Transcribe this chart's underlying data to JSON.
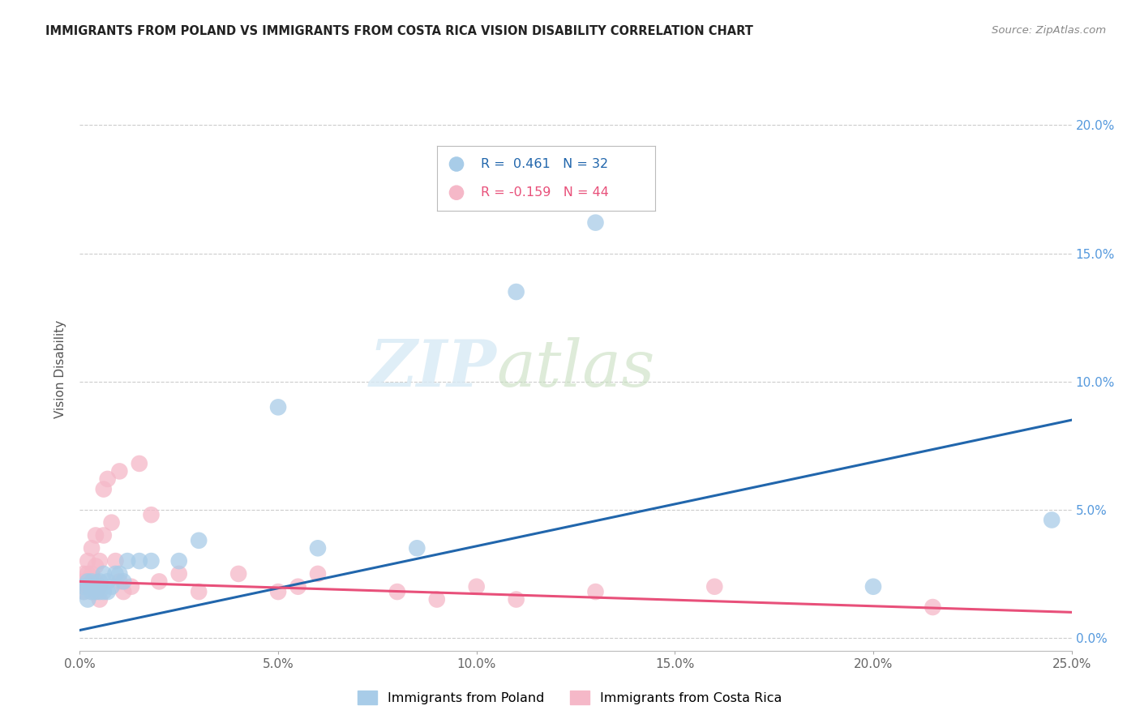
{
  "title": "IMMIGRANTS FROM POLAND VS IMMIGRANTS FROM COSTA RICA VISION DISABILITY CORRELATION CHART",
  "source": "Source: ZipAtlas.com",
  "ylabel": "Vision Disability",
  "xlim": [
    0.0,
    0.25
  ],
  "ylim": [
    -0.005,
    0.215
  ],
  "x_ticks": [
    0.0,
    0.05,
    0.1,
    0.15,
    0.2,
    0.25
  ],
  "y_ticks": [
    0.0,
    0.05,
    0.1,
    0.15,
    0.2
  ],
  "poland_R": 0.461,
  "poland_N": 32,
  "costa_rica_R": -0.159,
  "costa_rica_N": 44,
  "poland_color": "#a8cce8",
  "costa_rica_color": "#f5b8c8",
  "poland_line_color": "#2166ac",
  "costa_rica_line_color": "#e8507a",
  "watermark_zip": "ZIP",
  "watermark_atlas": "atlas",
  "legend_poland_label": "Immigrants from Poland",
  "legend_costa_rica_label": "Immigrants from Costa Rica",
  "background_color": "#ffffff",
  "grid_color": "#cccccc",
  "right_axis_color": "#5599dd",
  "poland_x": [
    0.001,
    0.001,
    0.002,
    0.002,
    0.003,
    0.003,
    0.003,
    0.004,
    0.004,
    0.005,
    0.005,
    0.005,
    0.006,
    0.006,
    0.007,
    0.007,
    0.008,
    0.009,
    0.01,
    0.011,
    0.012,
    0.015,
    0.018,
    0.025,
    0.03,
    0.05,
    0.06,
    0.085,
    0.11,
    0.13,
    0.2,
    0.245
  ],
  "poland_y": [
    0.02,
    0.018,
    0.022,
    0.015,
    0.02,
    0.018,
    0.022,
    0.02,
    0.018,
    0.022,
    0.018,
    0.02,
    0.025,
    0.018,
    0.022,
    0.018,
    0.02,
    0.025,
    0.025,
    0.022,
    0.03,
    0.03,
    0.03,
    0.03,
    0.038,
    0.09,
    0.035,
    0.035,
    0.135,
    0.162,
    0.02,
    0.046
  ],
  "costa_rica_x": [
    0.001,
    0.001,
    0.001,
    0.002,
    0.002,
    0.002,
    0.002,
    0.003,
    0.003,
    0.003,
    0.003,
    0.003,
    0.004,
    0.004,
    0.004,
    0.004,
    0.005,
    0.005,
    0.005,
    0.006,
    0.006,
    0.007,
    0.008,
    0.009,
    0.01,
    0.01,
    0.011,
    0.013,
    0.015,
    0.018,
    0.02,
    0.025,
    0.03,
    0.04,
    0.05,
    0.055,
    0.06,
    0.08,
    0.09,
    0.1,
    0.11,
    0.13,
    0.16,
    0.215
  ],
  "costa_rica_y": [
    0.022,
    0.025,
    0.018,
    0.02,
    0.022,
    0.025,
    0.03,
    0.018,
    0.02,
    0.022,
    0.025,
    0.035,
    0.018,
    0.022,
    0.028,
    0.04,
    0.015,
    0.02,
    0.03,
    0.04,
    0.058,
    0.062,
    0.045,
    0.03,
    0.022,
    0.065,
    0.018,
    0.02,
    0.068,
    0.048,
    0.022,
    0.025,
    0.018,
    0.025,
    0.018,
    0.02,
    0.025,
    0.018,
    0.015,
    0.02,
    0.015,
    0.018,
    0.02,
    0.012
  ]
}
